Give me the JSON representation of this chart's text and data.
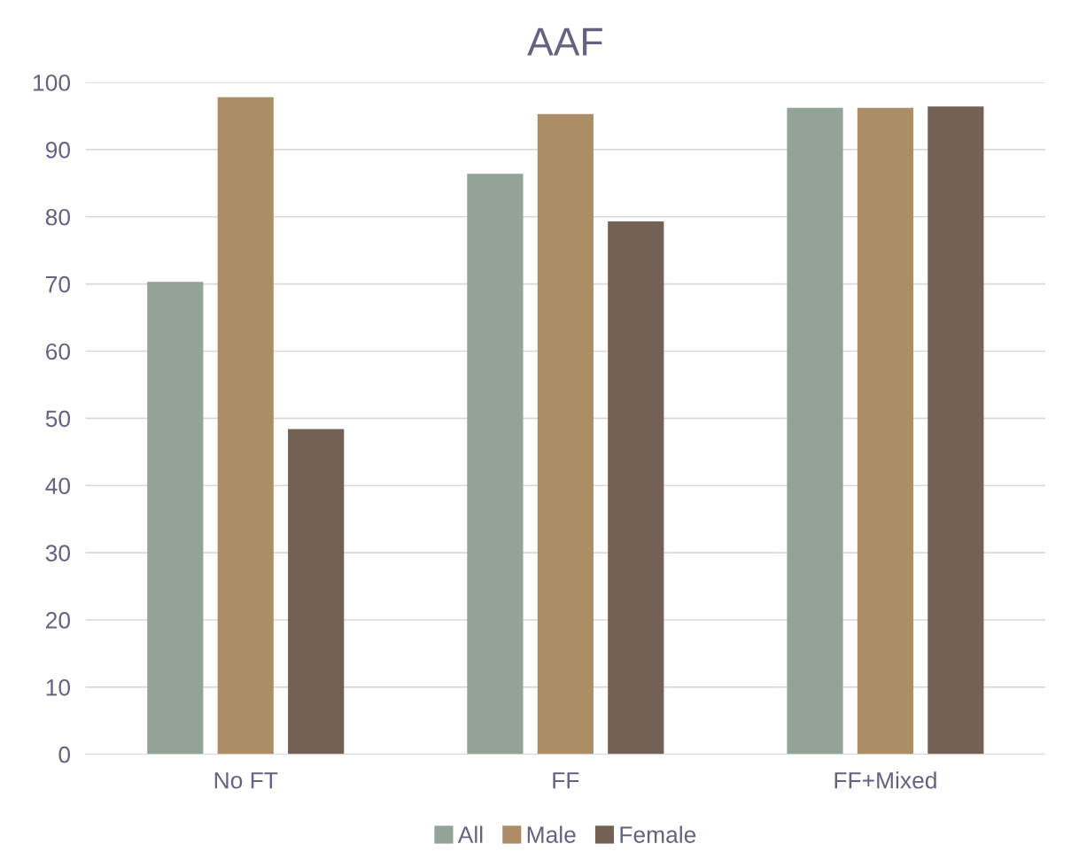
{
  "chart_data": {
    "type": "bar",
    "title": "AAF",
    "categories": [
      "No FT",
      "FF",
      "FF+Mixed"
    ],
    "series": [
      {
        "name": "All",
        "color": "#94a398",
        "values": [
          70.3,
          86.4,
          96.2
        ]
      },
      {
        "name": "Male",
        "color": "#ab8e66",
        "values": [
          97.8,
          95.3,
          96.2
        ]
      },
      {
        "name": "Female",
        "color": "#736156",
        "values": [
          48.4,
          79.3,
          96.4
        ]
      }
    ],
    "ylim": [
      0,
      100
    ],
    "yticks": [
      0,
      10,
      20,
      30,
      40,
      50,
      60,
      70,
      80,
      90,
      100
    ],
    "grid": "y",
    "legend": "bottom"
  }
}
